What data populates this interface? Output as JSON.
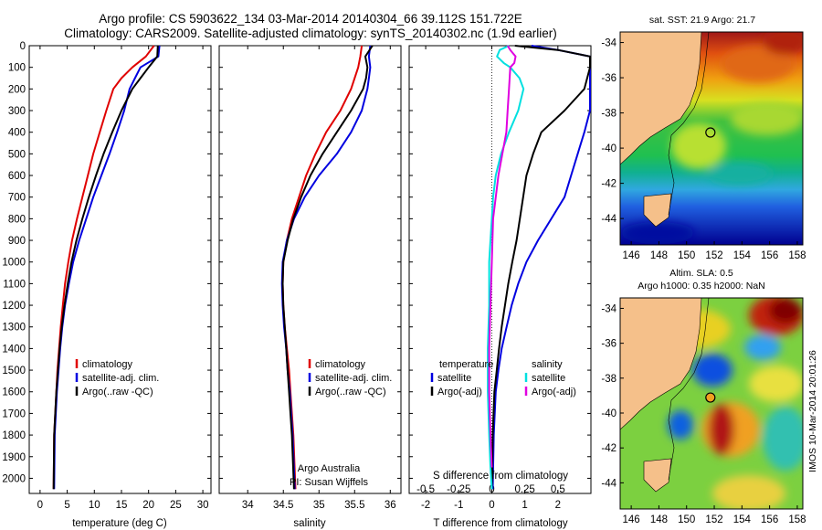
{
  "title_line1": "Argo profile: CS 5903622_134 03-Mar-2014 20140304_66 39.112S 151.722E",
  "title_line2": "Climatology: CARS2009. Satellite-adjusted climatology: synTS_20140302.nc (1.9d earlier)",
  "sst_title": "sat. SST: 21.9 Argo: 21.7",
  "sla_title_line1": "Altim. SLA: 0.5",
  "sla_title_line2": "Argo h1000: 0.35 h2000: NaN",
  "side_stamp": "IMOS 10-Mar-2014 20:01:26",
  "credit_line1": "Argo Australia",
  "credit_line2": "PI: Susan Wijffels",
  "colors": {
    "climatology": "#e00000",
    "satellite": "#0000e0",
    "argo": "#000000",
    "satellite_s": "#00e0e0",
    "argo_s": "#e000e0",
    "land": "#f5c08a"
  },
  "chart_data": [
    {
      "type": "line",
      "xlabel": "temperature (deg C)",
      "ylabel": "",
      "xlim": [
        -2,
        31.5
      ],
      "ylim": [
        0,
        2070
      ],
      "xticks": [
        0,
        5,
        10,
        15,
        20,
        25,
        30
      ],
      "yticks": [
        0,
        100,
        200,
        300,
        400,
        500,
        600,
        700,
        800,
        900,
        1000,
        1100,
        1200,
        1300,
        1400,
        1500,
        1600,
        1700,
        1800,
        1900,
        2000
      ],
      "legend": [
        "climatology",
        "satellite-adj. clim.",
        "Argo(..raw -QC)"
      ],
      "legend_position": "lower-right",
      "series": [
        {
          "name": "climatology",
          "color": "#e00000",
          "x": [
            21.0,
            19.5,
            17.0,
            15.0,
            13.5,
            12.2,
            11.0,
            9.8,
            8.8,
            7.8,
            6.8,
            5.9,
            5.2,
            4.6,
            4.2,
            3.8,
            3.5,
            3.2,
            3.0,
            2.8,
            2.6,
            2.5
          ],
          "y": [
            0,
            50,
            100,
            150,
            200,
            300,
            400,
            500,
            600,
            700,
            800,
            900,
            1000,
            1100,
            1200,
            1300,
            1400,
            1500,
            1600,
            1700,
            1800,
            2050
          ]
        },
        {
          "name": "satellite-adj. clim.",
          "color": "#0000e0",
          "x": [
            22.0,
            21.8,
            18.5,
            17.5,
            16.5,
            15.5,
            14.2,
            12.8,
            11.3,
            9.8,
            8.5,
            7.2,
            6.1,
            5.3,
            4.6,
            4.1,
            3.7,
            3.4,
            3.1,
            2.9,
            2.7,
            2.6
          ],
          "y": [
            0,
            50,
            100,
            150,
            200,
            300,
            400,
            500,
            600,
            700,
            800,
            900,
            1000,
            1100,
            1200,
            1300,
            1400,
            1500,
            1600,
            1700,
            1800,
            2050
          ]
        },
        {
          "name": "Argo(..raw -QC)",
          "color": "#000000",
          "x": [
            21.7,
            21.6,
            20.0,
            18.5,
            17.0,
            15.0,
            13.3,
            11.7,
            10.3,
            9.0,
            7.8,
            6.7,
            5.8,
            5.1,
            4.5,
            4.0,
            3.6,
            3.3,
            3.0,
            2.8,
            2.6,
            2.5
          ],
          "y": [
            0,
            50,
            100,
            150,
            200,
            300,
            400,
            500,
            600,
            700,
            800,
            900,
            1000,
            1100,
            1200,
            1300,
            1400,
            1500,
            1600,
            1700,
            1800,
            2050
          ]
        }
      ]
    },
    {
      "type": "line",
      "xlabel": "salinity",
      "xlim": [
        33.6,
        36.15
      ],
      "ylim": [
        0,
        2070
      ],
      "xticks": [
        34,
        34.5,
        35,
        35.5,
        36
      ],
      "legend": [
        "climatology",
        "satellite-adj. clim.",
        "Argo(..raw -QC)"
      ],
      "legend_position": "lower-right",
      "series": [
        {
          "name": "climatology",
          "color": "#e00000",
          "x": [
            35.6,
            35.58,
            35.55,
            35.5,
            35.45,
            35.3,
            35.1,
            34.95,
            34.82,
            34.72,
            34.62,
            34.55,
            34.5,
            34.49,
            34.5,
            34.52,
            34.55,
            34.58,
            34.6,
            34.62,
            34.64,
            34.67
          ],
          "y": [
            0,
            50,
            100,
            150,
            200,
            300,
            400,
            500,
            600,
            700,
            800,
            900,
            1000,
            1100,
            1200,
            1300,
            1400,
            1500,
            1600,
            1700,
            1800,
            2050
          ]
        },
        {
          "name": "satellite-adj. clim.",
          "color": "#0000e0",
          "x": [
            35.72,
            35.7,
            35.72,
            35.7,
            35.68,
            35.6,
            35.45,
            35.25,
            35.0,
            34.8,
            34.65,
            34.55,
            34.49,
            34.48,
            34.49,
            34.51,
            34.54,
            34.56,
            34.59,
            34.61,
            34.63,
            34.66
          ],
          "y": [
            0,
            50,
            100,
            150,
            200,
            300,
            400,
            500,
            600,
            700,
            800,
            900,
            1000,
            1100,
            1200,
            1300,
            1400,
            1500,
            1600,
            1700,
            1800,
            2050
          ]
        },
        {
          "name": "Argo(..raw -QC)",
          "color": "#000000",
          "x": [
            35.75,
            35.65,
            35.68,
            35.66,
            35.62,
            35.45,
            35.25,
            35.05,
            34.88,
            34.75,
            34.64,
            34.56,
            34.5,
            34.49,
            34.5,
            34.52,
            34.54,
            34.56,
            34.58,
            34.6,
            34.62,
            34.65
          ],
          "y": [
            0,
            50,
            100,
            150,
            200,
            300,
            400,
            500,
            600,
            700,
            800,
            900,
            1000,
            1100,
            1200,
            1300,
            1400,
            1500,
            1600,
            1700,
            1800,
            2050
          ]
        }
      ]
    },
    {
      "type": "line",
      "xlabel": "T difference from climatology",
      "xlabel2": "S difference from climatology",
      "xlim": [
        -2.5,
        3.0
      ],
      "ylim": [
        0,
        2070
      ],
      "xticks": [
        -2,
        -1,
        0,
        1,
        2
      ],
      "xticks2": [
        -0.5,
        -0.25,
        0,
        0.25,
        0.5
      ],
      "legend_groups": [
        {
          "heading": "temperature",
          "items": [
            "satellite",
            "Argo(-adj)"
          ]
        },
        {
          "heading": "salinity",
          "items": [
            "satellite",
            "Argo(-adj)"
          ]
        }
      ],
      "legend_position": "lower-center",
      "series": [
        {
          "name": "temperature satellite",
          "color": "#0000e0",
          "x": [
            1.2,
            2.0,
            3.0,
            3.2,
            3.3,
            3.2,
            3.0,
            2.8,
            2.6,
            2.4,
            2.2,
            1.8,
            1.4,
            1.05,
            0.8,
            0.6,
            0.45,
            0.3,
            0.2,
            0.12,
            0.06,
            0.03
          ],
          "y": [
            0,
            20,
            50,
            80,
            100,
            200,
            300,
            400,
            500,
            600,
            700,
            800,
            900,
            1000,
            1100,
            1200,
            1300,
            1400,
            1500,
            1600,
            1800,
            2050
          ]
        },
        {
          "name": "temperature Argo(-adj)",
          "color": "#000000",
          "x": [
            0.7,
            2.0,
            3.0,
            3.3,
            3.2,
            2.8,
            2.2,
            1.5,
            1.25,
            1.05,
            0.95,
            0.85,
            0.75,
            0.62,
            0.5,
            0.4,
            0.3,
            0.22,
            0.15,
            0.08,
            0.03,
            0.0
          ],
          "y": [
            0,
            20,
            50,
            80,
            100,
            200,
            300,
            400,
            500,
            600,
            700,
            800,
            900,
            1000,
            1100,
            1200,
            1300,
            1400,
            1500,
            1600,
            1800,
            2050
          ]
        },
        {
          "name": "salinity satellite",
          "color": "#00e0e0",
          "x": [
            0.13,
            0.06,
            0.04,
            0.09,
            0.14,
            0.21,
            0.24,
            0.2,
            0.13,
            0.07,
            0.03,
            0.01,
            0.0,
            -0.01,
            -0.02,
            -0.02,
            -0.03,
            -0.03,
            -0.02,
            -0.01,
            0.0
          ],
          "y": [
            0,
            20,
            50,
            80,
            100,
            150,
            200,
            300,
            400,
            500,
            600,
            700,
            800,
            900,
            1000,
            1200,
            1400,
            1600,
            1800,
            1950,
            2050
          ]
        },
        {
          "name": "salinity Argo(-adj)",
          "color": "#e000e0",
          "x": [
            0.12,
            0.14,
            0.18,
            0.17,
            0.14,
            0.13,
            0.12,
            0.11,
            0.08,
            0.05,
            0.03,
            0.01,
            0.0,
            -0.01,
            -0.02,
            -0.02,
            -0.01,
            0.0
          ],
          "y": [
            0,
            20,
            50,
            80,
            100,
            200,
            300,
            400,
            500,
            600,
            700,
            800,
            1000,
            1200,
            1400,
            1600,
            1800,
            1950
          ]
        }
      ]
    },
    {
      "type": "heatmap",
      "title": "sat. SST: 21.9 Argo: 21.7",
      "xlim": [
        145.2,
        158.4
      ],
      "ylim": [
        -45.5,
        -33.4
      ],
      "xticks": [
        146,
        148,
        150,
        152,
        154,
        156,
        158
      ],
      "yticks": [
        -34,
        -36,
        -38,
        -40,
        -42,
        -44
      ],
      "argo_position": {
        "lon": 151.722,
        "lat": -39.112
      }
    },
    {
      "type": "heatmap",
      "title": "Altim. SLA: 0.5",
      "subtitle": "Argo h1000: 0.35 h2000: NaN",
      "xlim": [
        145.2,
        158.4
      ],
      "ylim": [
        -45.5,
        -33.4
      ],
      "xticks": [
        146,
        148,
        150,
        152,
        154,
        156,
        158
      ],
      "yticks": [
        -34,
        -36,
        -38,
        -40,
        -42,
        -44
      ],
      "argo_position": {
        "lon": 151.722,
        "lat": -39.112
      }
    }
  ]
}
